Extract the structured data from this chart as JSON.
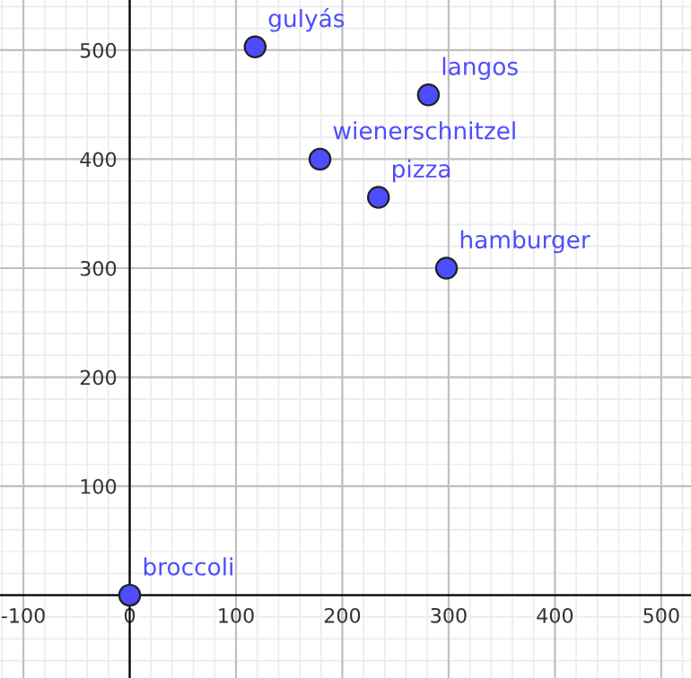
{
  "chart_data": {
    "type": "scatter",
    "x": [
      118,
      281,
      179,
      234,
      298,
      0
    ],
    "values": [
      503,
      459,
      400,
      365,
      300,
      0
    ],
    "color": "#4d4dff",
    "marker": "circle",
    "annotations": [
      {
        "text": "gulyás",
        "x": 118,
        "y": 503
      },
      {
        "text": "langos",
        "x": 281,
        "y": 459
      },
      {
        "text": "wienerschnitzel",
        "x": 179,
        "y": 400
      },
      {
        "text": "pizza",
        "x": 234,
        "y": 365
      },
      {
        "text": "hamburger",
        "x": 298,
        "y": 300
      },
      {
        "text": "broccoli",
        "x": 0,
        "y": 0
      }
    ],
    "xlim": [
      -122,
      528
    ],
    "ylim": [
      -76,
      546
    ],
    "xticks": [
      -100,
      0,
      100,
      200,
      300,
      400,
      500
    ],
    "yticks": [
      100,
      200,
      300,
      400,
      500
    ],
    "grid": true
  }
}
